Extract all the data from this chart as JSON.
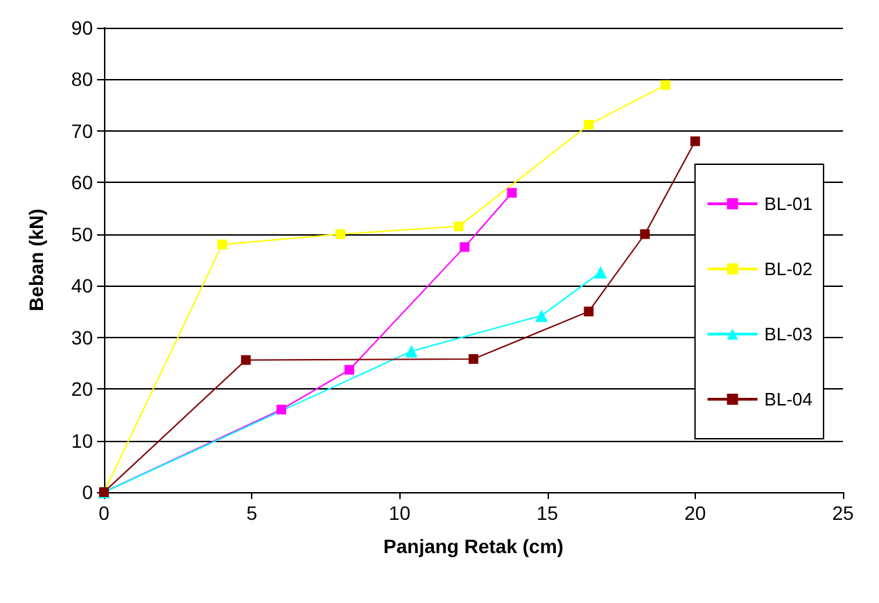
{
  "chart_data": {
    "type": "line",
    "xlabel": "Panjang Retak (cm)",
    "ylabel": "Beban (kN)",
    "xlim": [
      0,
      25
    ],
    "xticks": [
      0,
      5,
      10,
      15,
      20,
      25
    ],
    "ylim": [
      0,
      90
    ],
    "yticks": [
      0,
      10,
      20,
      30,
      40,
      50,
      60,
      70,
      80,
      90
    ],
    "grid": "y",
    "legend": "right",
    "line_style": "solid",
    "series": [
      {
        "name": "BL-01",
        "color": "#ff00ff",
        "marker": "square",
        "x": [
          0,
          6,
          8.3,
          12.2,
          13.8
        ],
        "values": [
          0,
          16,
          23.7,
          47.5,
          58
        ]
      },
      {
        "name": "BL-02",
        "color": "#ffff00",
        "marker": "square",
        "x": [
          0,
          4,
          8,
          12,
          16.4,
          19
        ],
        "values": [
          0,
          48,
          50,
          51.5,
          71.2,
          78.9
        ]
      },
      {
        "name": "BL-03",
        "color": "#00ffff",
        "marker": "triangle",
        "x": [
          0,
          10.4,
          14.8,
          16.8
        ],
        "values": [
          0,
          27.3,
          34.2,
          42.6
        ]
      },
      {
        "name": "BL-04",
        "color": "#800000",
        "marker": "square",
        "x": [
          0,
          4.8,
          12.5,
          16.4,
          18.3,
          20
        ],
        "values": [
          0,
          25.6,
          25.8,
          35,
          50,
          68
        ]
      }
    ]
  }
}
